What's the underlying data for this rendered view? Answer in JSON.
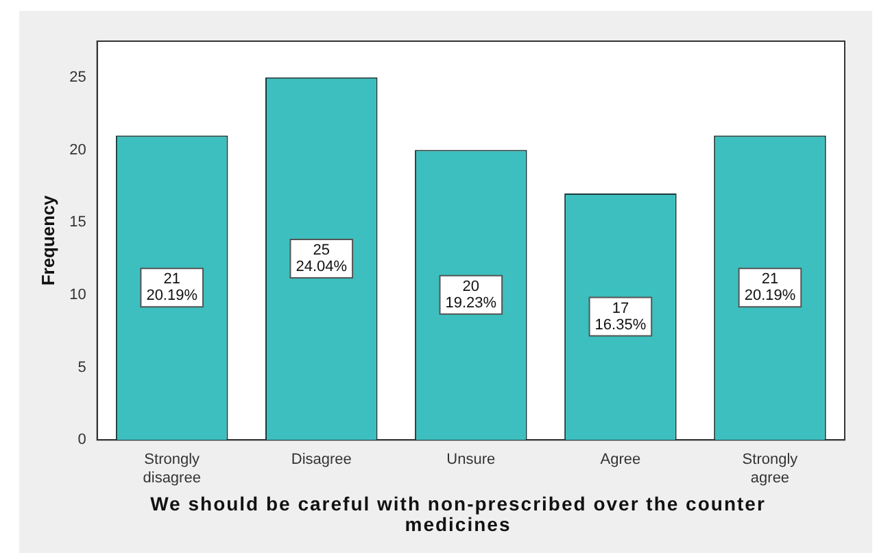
{
  "chart_data": {
    "type": "bar",
    "xlabel": "We should be careful with non-prescribed over the counter medicines",
    "ylabel": "Frequency",
    "categories": [
      "Strongly disagree",
      "Disagree",
      "Unsure",
      "Agree",
      "Strongly agree"
    ],
    "values": [
      21,
      25,
      20,
      17,
      21
    ],
    "value_labels": [
      "21\n20.19%",
      "25\n24.04%",
      "20\n19.23%",
      "17\n16.35%",
      "21\n20.19%"
    ],
    "color": "#3dbfbf",
    "ylim": [
      0,
      27.5
    ],
    "yticks": [
      0,
      5,
      10,
      15,
      20,
      25
    ],
    "grid": false,
    "legend": false
  }
}
